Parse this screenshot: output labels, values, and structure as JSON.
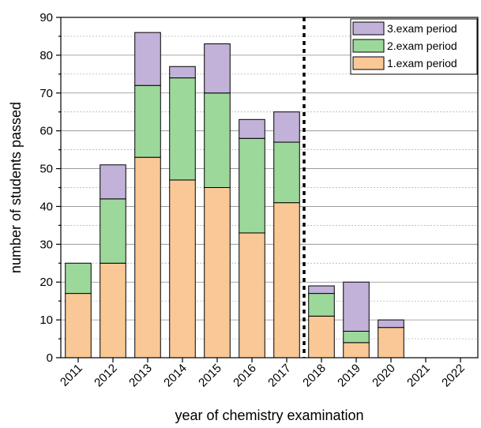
{
  "chart_data": {
    "type": "bar",
    "stacked": true,
    "title": "",
    "xlabel": "year of chemistry examination",
    "ylabel": "number of students passed",
    "ylim": [
      0,
      90
    ],
    "yticks": [
      0,
      10,
      20,
      30,
      40,
      50,
      60,
      70,
      80,
      90
    ],
    "grid": true,
    "legend_position": "top-right",
    "categories": [
      "2011",
      "2012",
      "2013",
      "2014",
      "2015",
      "2016",
      "2017",
      "2018",
      "2019",
      "2020",
      "2021",
      "2022"
    ],
    "series": [
      {
        "name": "1.exam period",
        "color": "#f9c896",
        "values": [
          17,
          25,
          53,
          47,
          45,
          33,
          41,
          11,
          4,
          8,
          0,
          0
        ]
      },
      {
        "name": "2.exam period",
        "color": "#9dd89b",
        "values": [
          8,
          17,
          19,
          27,
          25,
          25,
          16,
          6,
          3,
          0,
          0,
          0
        ]
      },
      {
        "name": "3.exam period",
        "color": "#c2b1d8",
        "values": [
          0,
          9,
          14,
          3,
          13,
          5,
          8,
          2,
          13,
          2,
          0,
          0
        ]
      }
    ],
    "annotations": [
      {
        "type": "vertical-dashed-line",
        "between": [
          "2017",
          "2018"
        ]
      }
    ]
  }
}
